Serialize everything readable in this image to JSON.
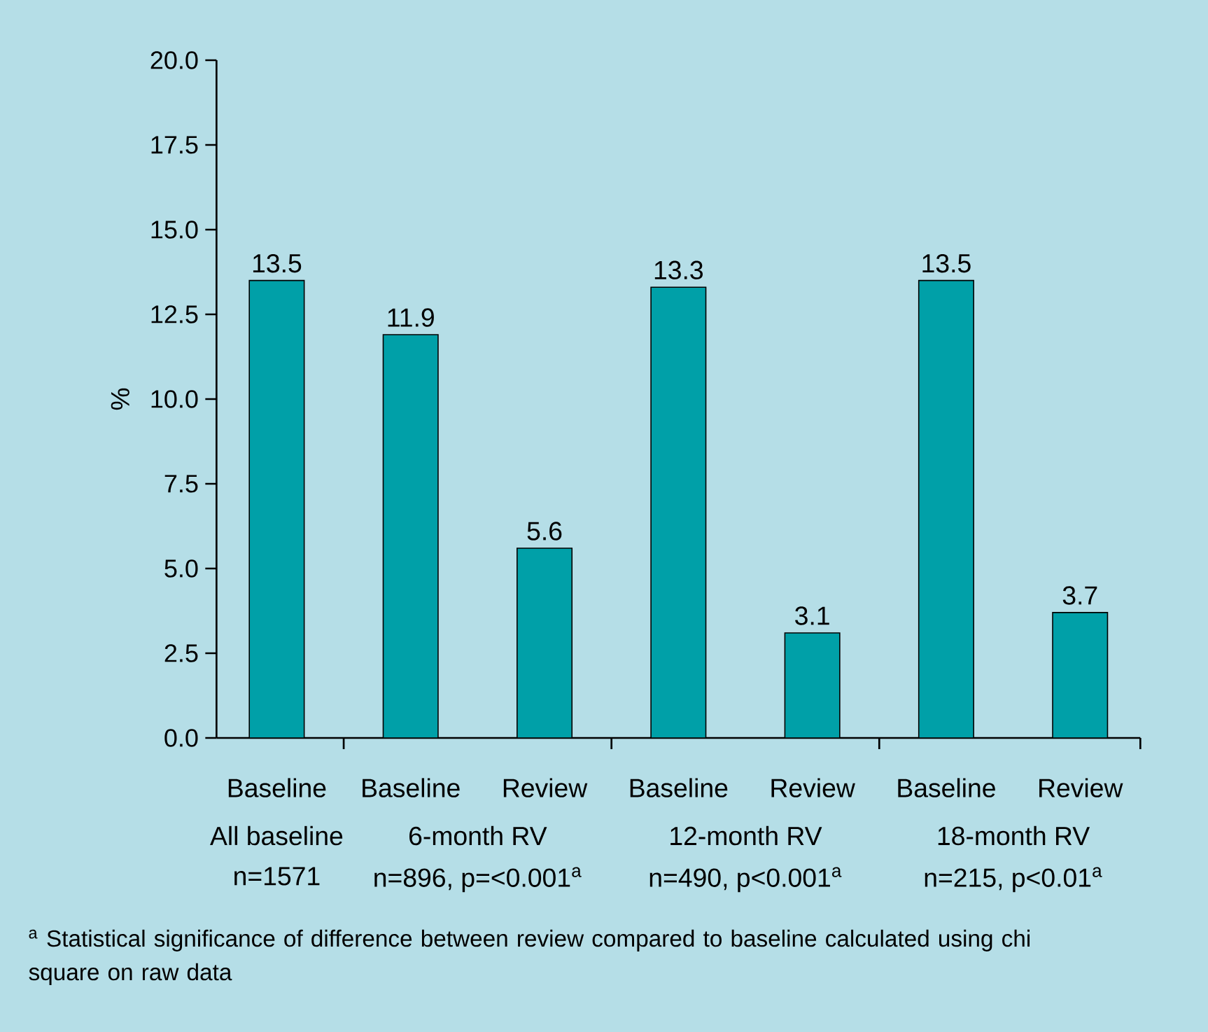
{
  "chart_data": {
    "type": "bar",
    "categories": [
      "Baseline",
      "Baseline",
      "Review",
      "Baseline",
      "Review",
      "Baseline",
      "Review"
    ],
    "values": [
      13.5,
      11.9,
      5.6,
      13.3,
      3.1,
      13.5,
      3.7
    ],
    "color": "#00a0a8",
    "ylabel": "%",
    "ylim": [
      0,
      20
    ],
    "yticks": [
      {
        "value": 0,
        "label": "0.0"
      },
      {
        "value": 2.5,
        "label": "2.5"
      },
      {
        "value": 5,
        "label": "5.0"
      },
      {
        "value": 7.5,
        "label": "7.5"
      },
      {
        "value": 10,
        "label": "10.0"
      },
      {
        "value": 12.5,
        "label": "12.5"
      },
      {
        "value": 15,
        "label": "15.0"
      },
      {
        "value": 17.5,
        "label": "17.5"
      },
      {
        "value": 20,
        "label": "20.0"
      }
    ],
    "data_labels": true,
    "annotations": [
      "All baseline",
      "n=1571",
      "6-month RV",
      "n=896, p=<0.001$^{a}$",
      "12-month RV",
      "n=490, p<0.001$^{a}$",
      "18-month RV",
      "n=215, p<0.01$^{a}$",
      "$^{a}$ Statistical significance of difference between review compared to baseline calculated using chi square on raw data"
    ]
  }
}
